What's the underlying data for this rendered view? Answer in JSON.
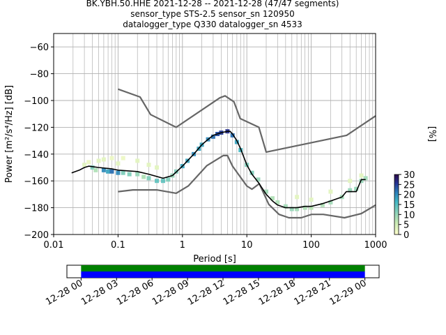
{
  "header": {
    "title_lines": [
      "BK.YBH.50.HHE   2021-12-28 -- 2021-12-28  (47/47 segments)",
      "sensor_type STS-2.5 sensor_sn 120950",
      "datalogger_type Q330 datalogger_sn 4533"
    ]
  },
  "colors": {
    "noise_model": "#666666",
    "mode_line": "#000000",
    "grid": "#b0b0b0",
    "cmap_low": "#ffffcc",
    "cmap_mid": "#41b6c4",
    "cmap_high": "#2c0a4a",
    "timeline_green": "#008000",
    "timeline_blue": "#0000ff"
  },
  "chart_data": [
    {
      "type": "heatmap",
      "xlabel": "Period [s]",
      "ylabel": "Power [m²/s⁴/Hz] [dB]",
      "x_scale": "log",
      "xlim": [
        0.01,
        1000
      ],
      "ylim": [
        -200,
        -50
      ],
      "x_ticks": [
        {
          "value": 0.01,
          "label": "0.01"
        },
        {
          "value": 0.1,
          "label": "0.1"
        },
        {
          "value": 1,
          "label": "1"
        },
        {
          "value": 10,
          "label": "10"
        },
        {
          "value": 100,
          "label": "100"
        },
        {
          "value": 1000,
          "label": "1000"
        }
      ],
      "y_ticks": [
        {
          "value": -60,
          "label": "−60"
        },
        {
          "value": -80,
          "label": "−80"
        },
        {
          "value": -100,
          "label": "−100"
        },
        {
          "value": -120,
          "label": "−120"
        },
        {
          "value": -140,
          "label": "−140"
        },
        {
          "value": -160,
          "label": "−160"
        },
        {
          "value": -180,
          "label": "−180"
        },
        {
          "value": -200,
          "label": "−200"
        }
      ],
      "grid": true,
      "colorbar": {
        "label": "[%]",
        "range": [
          0,
          30
        ],
        "ticks": [
          {
            "value": 0,
            "label": "0"
          },
          {
            "value": 5,
            "label": "5"
          },
          {
            "value": 10,
            "label": "10"
          },
          {
            "value": 15,
            "label": "15"
          },
          {
            "value": 20,
            "label": "20"
          },
          {
            "value": 25,
            "label": "25"
          },
          {
            "value": 30,
            "label": "30"
          }
        ]
      },
      "mode_curve": {
        "x": [
          0.019,
          0.025,
          0.03,
          0.035,
          0.05,
          0.08,
          0.1,
          0.2,
          0.3,
          0.5,
          0.7,
          1,
          1.5,
          2,
          2.5,
          3,
          4,
          5,
          5.5,
          6,
          7,
          8,
          10,
          12,
          15,
          20,
          25,
          30,
          40,
          50,
          60,
          80,
          100,
          150,
          200,
          300,
          350,
          400,
          500,
          600,
          700
        ],
        "y": [
          -154,
          -152,
          -150,
          -149,
          -150,
          -151,
          -152,
          -153,
          -155,
          -158,
          -156,
          -149,
          -140,
          -133,
          -129,
          -126,
          -124,
          -123,
          -123,
          -125,
          -130,
          -136,
          -148,
          -155,
          -161,
          -170,
          -175,
          -178,
          -180,
          -180,
          -180,
          -179,
          -179,
          -177,
          -175,
          -172,
          -168,
          -168,
          -168,
          -159,
          -159
        ]
      },
      "nhnm": {
        "x": [
          0.1,
          0.22,
          0.32,
          0.8,
          3.8,
          4.6,
          6.3,
          7.9,
          15.4,
          20,
          354.8,
          1000
        ],
        "y": [
          -91.5,
          -97.4,
          -110.5,
          -120,
          -98,
          -96.5,
          -101,
          -113.5,
          -120,
          -138.5,
          -126,
          -111.5
        ]
      },
      "nlnm": {
        "x": [
          0.1,
          0.17,
          0.4,
          0.8,
          1.24,
          2.4,
          4.3,
          5,
          6,
          10,
          12,
          15.6,
          21.9,
          31.6,
          45,
          70,
          101,
          154,
          328,
          600,
          1000
        ],
        "y": [
          -168,
          -166.7,
          -166.7,
          -169.2,
          -163.7,
          -148.6,
          -141.1,
          -141.1,
          -149,
          -163.8,
          -166.2,
          -162.1,
          -177.5,
          -185,
          -187.5,
          -187.5,
          -185,
          -185,
          -187.5,
          -184.4,
          -178
        ]
      },
      "density_cells": [
        {
          "p": 0.03,
          "db": -148,
          "pct": 3
        },
        {
          "p": 0.035,
          "db": -146,
          "pct": 2
        },
        {
          "p": 0.04,
          "db": -150,
          "pct": 12
        },
        {
          "p": 0.045,
          "db": -152,
          "pct": 8
        },
        {
          "p": 0.05,
          "db": -145,
          "pct": 3
        },
        {
          "p": 0.06,
          "db": -152,
          "pct": 20
        },
        {
          "p": 0.06,
          "db": -144,
          "pct": 3
        },
        {
          "p": 0.07,
          "db": -153,
          "pct": 18
        },
        {
          "p": 0.08,
          "db": -153,
          "pct": 22
        },
        {
          "p": 0.08,
          "db": -143,
          "pct": 2
        },
        {
          "p": 0.1,
          "db": -154,
          "pct": 20
        },
        {
          "p": 0.1,
          "db": -147,
          "pct": 3
        },
        {
          "p": 0.12,
          "db": -154,
          "pct": 12
        },
        {
          "p": 0.12,
          "db": -143,
          "pct": 2
        },
        {
          "p": 0.15,
          "db": -155,
          "pct": 12
        },
        {
          "p": 0.2,
          "db": -155,
          "pct": 10
        },
        {
          "p": 0.2,
          "db": -145,
          "pct": 3
        },
        {
          "p": 0.25,
          "db": -157,
          "pct": 8
        },
        {
          "p": 0.3,
          "db": -158,
          "pct": 12
        },
        {
          "p": 0.3,
          "db": -148,
          "pct": 3
        },
        {
          "p": 0.4,
          "db": -160,
          "pct": 14
        },
        {
          "p": 0.4,
          "db": -150,
          "pct": 3
        },
        {
          "p": 0.5,
          "db": -160,
          "pct": 14
        },
        {
          "p": 0.6,
          "db": -159,
          "pct": 12
        },
        {
          "p": 0.7,
          "db": -156,
          "pct": 10
        },
        {
          "p": 0.8,
          "db": -153,
          "pct": 12
        },
        {
          "p": 1,
          "db": -149,
          "pct": 18
        },
        {
          "p": 1.2,
          "db": -145,
          "pct": 18
        },
        {
          "p": 1.5,
          "db": -140,
          "pct": 20
        },
        {
          "p": 1.8,
          "db": -136,
          "pct": 18
        },
        {
          "p": 2,
          "db": -133,
          "pct": 18
        },
        {
          "p": 2.5,
          "db": -129,
          "pct": 20
        },
        {
          "p": 3,
          "db": -127,
          "pct": 22
        },
        {
          "p": 3.5,
          "db": -125,
          "pct": 24
        },
        {
          "p": 4,
          "db": -124,
          "pct": 25
        },
        {
          "p": 5,
          "db": -123,
          "pct": 26
        },
        {
          "p": 6,
          "db": -126,
          "pct": 22
        },
        {
          "p": 7,
          "db": -131,
          "pct": 18
        },
        {
          "p": 8,
          "db": -137,
          "pct": 16
        },
        {
          "p": 10,
          "db": -148,
          "pct": 12
        },
        {
          "p": 12,
          "db": -154,
          "pct": 12
        },
        {
          "p": 15,
          "db": -159,
          "pct": 10
        },
        {
          "p": 20,
          "db": -168,
          "pct": 9
        },
        {
          "p": 25,
          "db": -173,
          "pct": 8
        },
        {
          "p": 30,
          "db": -176,
          "pct": 8
        },
        {
          "p": 40,
          "db": -179,
          "pct": 9
        },
        {
          "p": 50,
          "db": -181,
          "pct": 10
        },
        {
          "p": 60,
          "db": -181,
          "pct": 9
        },
        {
          "p": 80,
          "db": -180,
          "pct": 8
        },
        {
          "p": 100,
          "db": -180,
          "pct": 7
        },
        {
          "p": 150,
          "db": -178,
          "pct": 8
        },
        {
          "p": 200,
          "db": -176,
          "pct": 9
        },
        {
          "p": 300,
          "db": -172,
          "pct": 9
        },
        {
          "p": 400,
          "db": -167,
          "pct": 10
        },
        {
          "p": 500,
          "db": -166,
          "pct": 10
        },
        {
          "p": 600,
          "db": -160,
          "pct": 10
        },
        {
          "p": 700,
          "db": -158,
          "pct": 9
        },
        {
          "p": 60,
          "db": -172,
          "pct": 3
        },
        {
          "p": 100,
          "db": -174,
          "pct": 3
        },
        {
          "p": 200,
          "db": -168,
          "pct": 3
        },
        {
          "p": 400,
          "db": -160,
          "pct": 3
        },
        {
          "p": 600,
          "db": -156,
          "pct": 3
        }
      ]
    },
    {
      "type": "table",
      "name": "data availability timeline",
      "x_ticks": [
        {
          "value": 0,
          "label": "12-28 00"
        },
        {
          "value": 3,
          "label": "12-28 03"
        },
        {
          "value": 6,
          "label": "12-28 06"
        },
        {
          "value": 9,
          "label": "12-28 09"
        },
        {
          "value": 12,
          "label": "12-28 12"
        },
        {
          "value": 15,
          "label": "12-28 15"
        },
        {
          "value": 18,
          "label": "12-28 18"
        },
        {
          "value": 21,
          "label": "12-28 21"
        },
        {
          "value": 24,
          "label": "12-29 00"
        }
      ],
      "xlim": [
        -1.2,
        25.2
      ],
      "coverage": [
        0,
        24
      ]
    }
  ]
}
